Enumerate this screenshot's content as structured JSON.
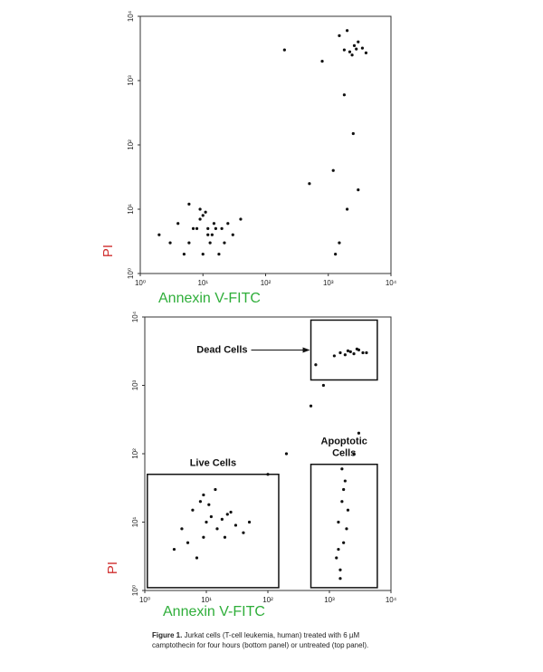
{
  "chart_data": [
    {
      "type": "scatter",
      "x_label": "Annexin V-FITC",
      "y_label": "PI",
      "log_scale": true,
      "xlim": [
        1,
        10000
      ],
      "ylim": [
        1,
        10000
      ],
      "xticks": [
        {
          "value": 1,
          "label": "10⁰"
        },
        {
          "value": 10,
          "label": "10¹"
        },
        {
          "value": 100,
          "label": "10²"
        },
        {
          "value": 1000,
          "label": "10³"
        },
        {
          "value": 10000,
          "label": "10⁴"
        }
      ],
      "yticks": [
        {
          "value": 1,
          "label": "10⁰"
        },
        {
          "value": 10,
          "label": "10¹"
        },
        {
          "value": 100,
          "label": "10²"
        },
        {
          "value": 1000,
          "label": "10³"
        },
        {
          "value": 10000,
          "label": "10⁴"
        }
      ],
      "color": "#111",
      "x": [
        8,
        12,
        15,
        6,
        10,
        20,
        5,
        9,
        14,
        25,
        3,
        11,
        7,
        18,
        30,
        4,
        13,
        9,
        16,
        2,
        40,
        10,
        6,
        12,
        22,
        1800,
        2200,
        2600,
        3000,
        2400,
        1500,
        3500,
        2000,
        2800,
        4000,
        1500,
        2000,
        1200,
        2500,
        1800,
        3000,
        1300,
        800,
        200,
        500
      ],
      "y": [
        5,
        4,
        6,
        3,
        8,
        5,
        2,
        7,
        4,
        6,
        3,
        9,
        5,
        2,
        4,
        6,
        3,
        10,
        5,
        4,
        7,
        2,
        12,
        5,
        3,
        3000,
        2800,
        3500,
        4000,
        2500,
        5000,
        3200,
        6000,
        3100,
        2700,
        3,
        10,
        40,
        150,
        600,
        20,
        2,
        2000,
        3000,
        25
      ]
    },
    {
      "type": "scatter",
      "x_label": "Annexin V-FITC",
      "y_label": "PI",
      "log_scale": true,
      "xlim": [
        1,
        10000
      ],
      "ylim": [
        1,
        10000
      ],
      "xticks": [
        {
          "value": 1,
          "label": "10⁰"
        },
        {
          "value": 10,
          "label": "10¹"
        },
        {
          "value": 100,
          "label": "10²"
        },
        {
          "value": 1000,
          "label": "10³"
        },
        {
          "value": 10000,
          "label": "10⁴"
        }
      ],
      "yticks": [
        {
          "value": 1,
          "label": "10⁰"
        },
        {
          "value": 10,
          "label": "10¹"
        },
        {
          "value": 100,
          "label": "10²"
        },
        {
          "value": 1000,
          "label": "10³"
        },
        {
          "value": 10000,
          "label": "10⁴"
        }
      ],
      "color": "#111",
      "x": [
        10,
        15,
        6,
        20,
        8,
        12,
        30,
        5,
        25,
        9,
        40,
        3,
        18,
        11,
        7,
        50,
        14,
        4,
        22,
        9,
        1500,
        2000,
        2500,
        3000,
        1800,
        2200,
        3500,
        1200,
        2800,
        4000,
        1500,
        1700,
        1400,
        1600,
        1800,
        1300,
        1900,
        1500,
        2000,
        1600,
        1400,
        1700,
        200,
        500,
        800,
        3000,
        100,
        600,
        2500
      ],
      "y": [
        10,
        8,
        15,
        6,
        20,
        12,
        9,
        5,
        14,
        25,
        7,
        4,
        11,
        18,
        3,
        10,
        30,
        8,
        13,
        6,
        3000,
        3200,
        2900,
        3300,
        2800,
        3100,
        3000,
        2700,
        3400,
        3000,
        2,
        5,
        10,
        20,
        40,
        3,
        8,
        1.5,
        15,
        60,
        4,
        30,
        100,
        500,
        1000,
        200,
        50,
        2000,
        100
      ],
      "gates": [
        {
          "label_lines": [
            "Dead Cells"
          ],
          "x": [
            500,
            6000
          ],
          "y": [
            1200,
            9000
          ]
        },
        {
          "label_lines": [
            "Live Cells"
          ],
          "x": [
            1.1,
            150
          ],
          "y": [
            1.1,
            50
          ]
        },
        {
          "label_lines": [
            "Apoptotic",
            "Cells"
          ],
          "x": [
            500,
            6000
          ],
          "y": [
            1.1,
            70
          ]
        }
      ]
    }
  ],
  "caption": {
    "label": "Figure 1.",
    "text": "Jurkat cells (T-cell leukemia, human) treated with 6 µM camptothecin for four hours (bottom panel) or untreated (top panel)."
  }
}
